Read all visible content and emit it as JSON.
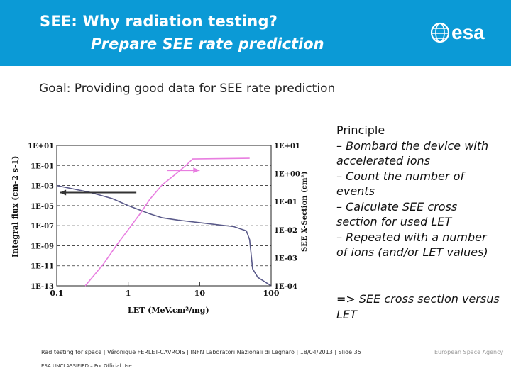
{
  "header": {
    "title_line1": "SEE: Why radiation testing?",
    "title_line2": "Prepare SEE rate prediction",
    "logo_text": "esa",
    "background_color": "#0b9ad6"
  },
  "goal": "Goal: Providing good data for SEE rate prediction",
  "principle": {
    "heading": "Principle",
    "items": [
      "– Bombard the device with accelerated ions",
      "– Count the number of events",
      "– Calculate SEE cross section for used LET",
      "– Repeated with a number of ions (and/or LET values)"
    ],
    "conclusion": "=> SEE cross section versus LET"
  },
  "chart_data": {
    "type": "line",
    "xlabel": "LET (MeV.cm²/mg)",
    "ylabel": "Integral flux (cm-2 s-1)",
    "y2label": "SEE X-Section (cm²)",
    "x_scale": "log",
    "x_ticks": [
      "0.1",
      "1",
      "10",
      "100"
    ],
    "xlim": [
      0.1,
      100
    ],
    "y_ticks": [
      "1E+01",
      "1E-01",
      "1E-03",
      "1E-05",
      "1E-07",
      "1E-09",
      "1E-11",
      "1E-13"
    ],
    "ylim": [
      1e-13,
      10
    ],
    "y2_ticks": [
      "1E+01",
      "1E+00",
      "1E-01",
      "1E-02",
      "1E-03",
      "1E-04"
    ],
    "y2lim": [
      0.0001,
      10
    ],
    "grid": "horizontal dashed",
    "series": [
      {
        "axis": "left",
        "color": "#5a5a8a",
        "points": [
          [
            0.1,
            0.001
          ],
          [
            0.3,
            0.0002
          ],
          [
            0.6,
            5e-05
          ],
          [
            1,
            1e-05
          ],
          [
            2,
            1.5e-06
          ],
          [
            3,
            6e-07
          ],
          [
            5,
            3.5e-07
          ],
          [
            10,
            2e-07
          ],
          [
            30,
            8e-08
          ],
          [
            45,
            3e-08
          ],
          [
            50,
            4e-09
          ],
          [
            55,
            5e-12
          ],
          [
            65,
            7e-13
          ],
          [
            100,
            1e-13
          ]
        ]
      },
      {
        "axis": "right",
        "color": "#e87ee0",
        "points": [
          [
            0.25,
            0.0001
          ],
          [
            0.45,
            0.0006
          ],
          [
            0.7,
            0.003
          ],
          [
            1,
            0.01
          ],
          [
            1.5,
            0.04
          ],
          [
            2,
            0.12
          ],
          [
            3,
            0.4
          ],
          [
            4.5,
            0.9
          ],
          [
            6.5,
            2.0
          ],
          [
            8,
            3.3
          ],
          [
            50,
            3.5
          ]
        ]
      }
    ],
    "annotations": [
      {
        "type": "arrow",
        "direction": "left",
        "color": "#333333",
        "y_axis": "left",
        "y": 0.0002,
        "x_from": 1.3,
        "x_to": 0.11
      },
      {
        "type": "arrow",
        "direction": "right",
        "color": "#e87ee0",
        "y_axis": "right",
        "y": 1.3,
        "x_from": 3.5,
        "x_to": 10
      }
    ]
  },
  "footer": {
    "text": "Rad testing for space | Véronique FERLET-CAVROIS | INFN Laboratori Nazionali di Legnaro | 18/04/2013 | Slide 35",
    "right": "European Space Agency",
    "classification": "ESA UNCLASSIFIED – For Official Use"
  }
}
